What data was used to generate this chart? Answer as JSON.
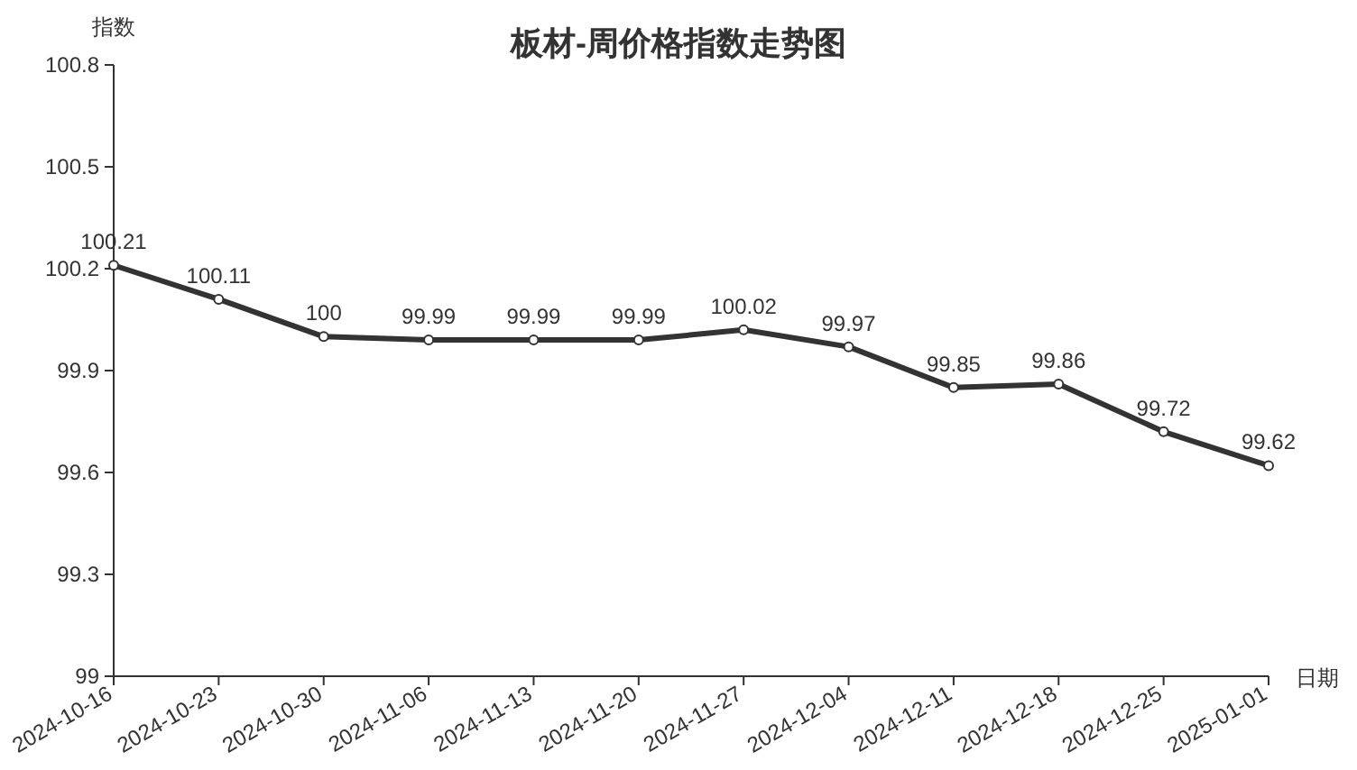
{
  "chart_data": {
    "type": "line",
    "title": "板材-周价格指数走势图",
    "xlabel": "日期",
    "ylabel": "指数",
    "categories": [
      "2024-10-16",
      "2024-10-23",
      "2024-10-30",
      "2024-11-06",
      "2024-11-13",
      "2024-11-20",
      "2024-11-27",
      "2024-12-04",
      "2024-12-11",
      "2024-12-18",
      "2024-12-25",
      "2025-01-01"
    ],
    "values": [
      100.21,
      100.11,
      100,
      99.99,
      99.99,
      99.99,
      100.02,
      99.97,
      99.85,
      99.86,
      99.72,
      99.62
    ],
    "color": "#333333",
    "ylim": [
      99,
      100.8
    ],
    "yticks": [
      99,
      99.3,
      99.6,
      99.9,
      100.2,
      100.5,
      100.8
    ],
    "data_labels": true,
    "marker": "circle",
    "line_style": "solid"
  }
}
